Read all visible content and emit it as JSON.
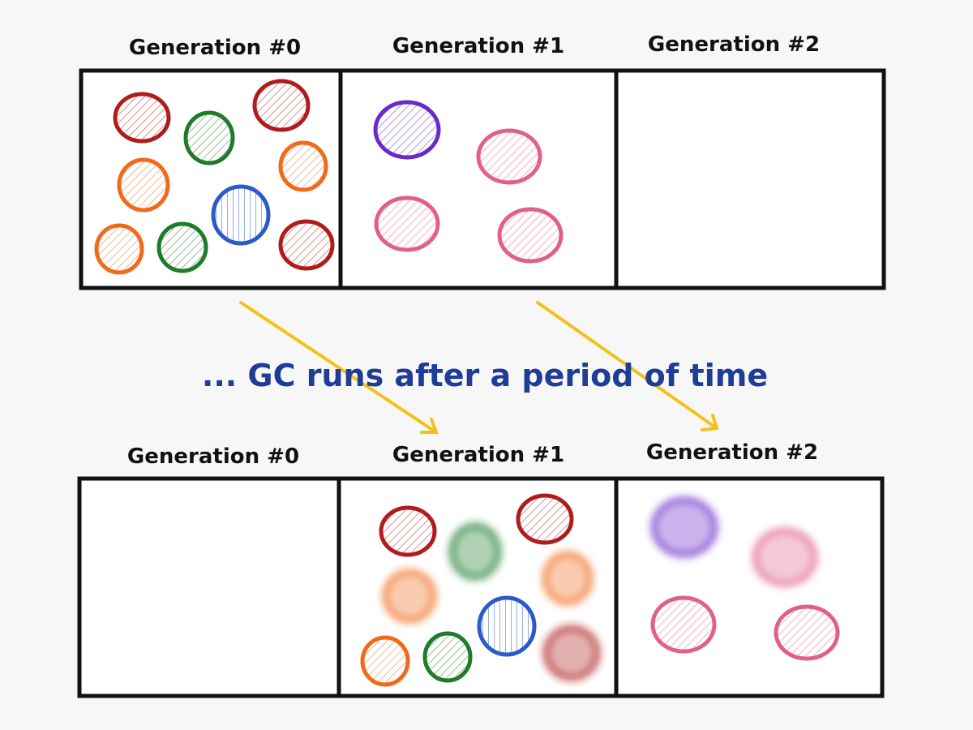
{
  "top": {
    "labels": [
      "Generation #0",
      "Generation #1",
      "Generation #2"
    ]
  },
  "caption": "... GC runs after a period of time",
  "bottom": {
    "labels": [
      "Generation #0",
      "Generation #1",
      "Generation #2"
    ]
  }
}
